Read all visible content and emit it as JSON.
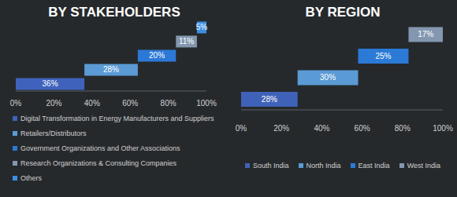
{
  "chart_data": [
    {
      "type": "bar",
      "title": "BY STAKEHOLDERS",
      "orientation": "horizontal",
      "stacked": true,
      "categories": [
        "Digital Transformation in Energy Manufacturers and Suppliers",
        "Retailers/Distributors",
        "Government Organizations and Other Associations",
        "Research Organizations & Consulting Companies",
        "Others"
      ],
      "values": [
        36,
        28,
        20,
        11,
        5
      ],
      "value_labels": [
        "36%",
        "28%",
        "20%",
        "11%",
        "5%"
      ],
      "colors": [
        "#3f63bd",
        "#5b9bd5",
        "#2c78d6",
        "#8497b0",
        "#3a8fe3"
      ],
      "xlim": [
        0,
        100
      ],
      "xticks": [
        {
          "value": 0,
          "label": "0%"
        },
        {
          "value": 20,
          "label": "20%"
        },
        {
          "value": 40,
          "label": "40%"
        },
        {
          "value": 60,
          "label": "60%"
        },
        {
          "value": 80,
          "label": "80%"
        },
        {
          "value": 100,
          "label": "100%"
        }
      ],
      "data_labels": true,
      "legend": "bottom",
      "grid": false
    },
    {
      "type": "bar",
      "title": "BY REGION",
      "orientation": "horizontal",
      "stacked": true,
      "categories": [
        "South India",
        "North India",
        "East India",
        "West India"
      ],
      "values": [
        28,
        30,
        25,
        17
      ],
      "value_labels": [
        "28%",
        "30%",
        "25%",
        "17%"
      ],
      "colors": [
        "#3f62b8",
        "#5b9bd5",
        "#2a7ad6",
        "#8497b0"
      ],
      "xlim": [
        0,
        100
      ],
      "xticks": [
        {
          "value": 0,
          "label": "0%"
        },
        {
          "value": 20,
          "label": "20%"
        },
        {
          "value": 40,
          "label": "40%"
        },
        {
          "value": 60,
          "label": "60%"
        },
        {
          "value": 80,
          "label": "80%"
        },
        {
          "value": 100,
          "label": "100%"
        }
      ],
      "data_labels": true,
      "legend": "bottom",
      "grid": false
    }
  ]
}
